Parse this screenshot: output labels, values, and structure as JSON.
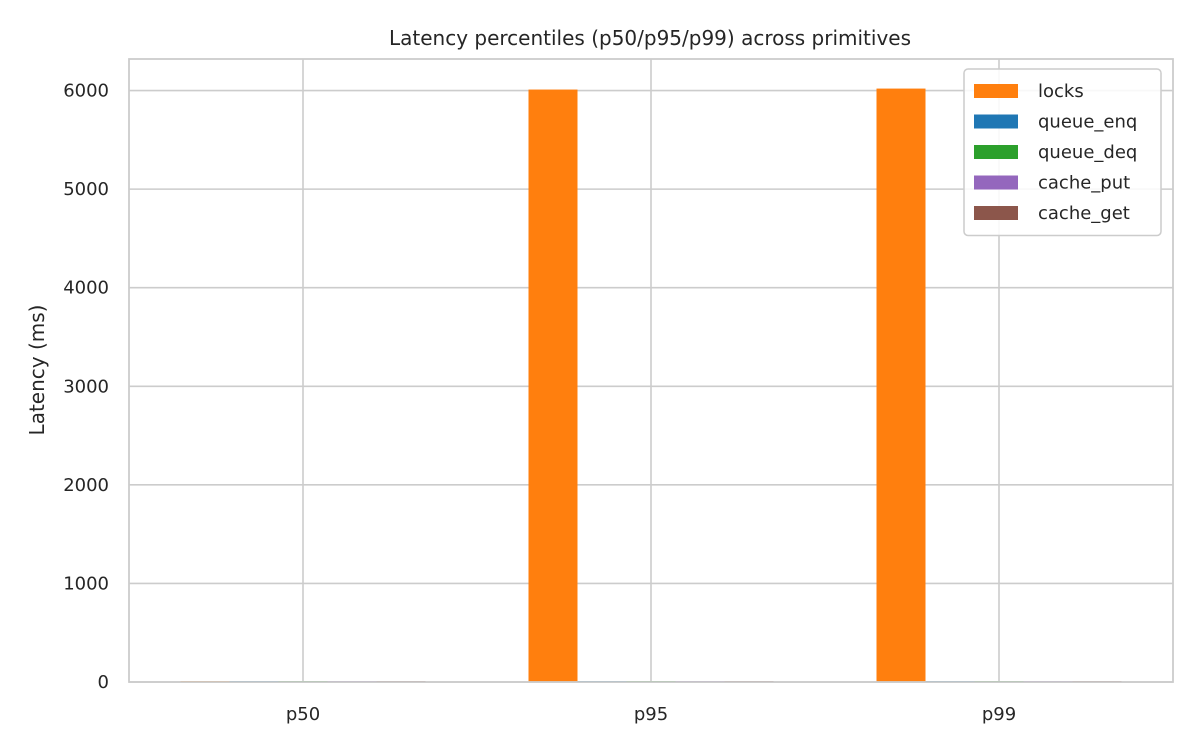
{
  "chart_data": {
    "type": "bar",
    "title": "Latency percentiles (p50/p95/p99) across primitives",
    "xlabel": "",
    "ylabel": "Latency (ms)",
    "categories": [
      "p50",
      "p95",
      "p99"
    ],
    "ylim": [
      0,
      6320
    ],
    "yticks": [
      0,
      1000,
      2000,
      3000,
      4000,
      5000,
      6000
    ],
    "grid": true,
    "legend_position": "top-right",
    "series": [
      {
        "name": "locks",
        "color": "#ff7f0e",
        "values": [
          0.5,
          6010,
          6020
        ]
      },
      {
        "name": "queue_enq",
        "color": "#1f77b4",
        "values": [
          0.02,
          0.05,
          0.08
        ]
      },
      {
        "name": "queue_deq",
        "color": "#2ca02c",
        "values": [
          0.02,
          0.05,
          0.08
        ]
      },
      {
        "name": "cache_put",
        "color": "#9467bd",
        "values": [
          0.01,
          0.03,
          0.05
        ]
      },
      {
        "name": "cache_get",
        "color": "#8c564b",
        "values": [
          0.01,
          0.02,
          0.04
        ]
      }
    ]
  }
}
